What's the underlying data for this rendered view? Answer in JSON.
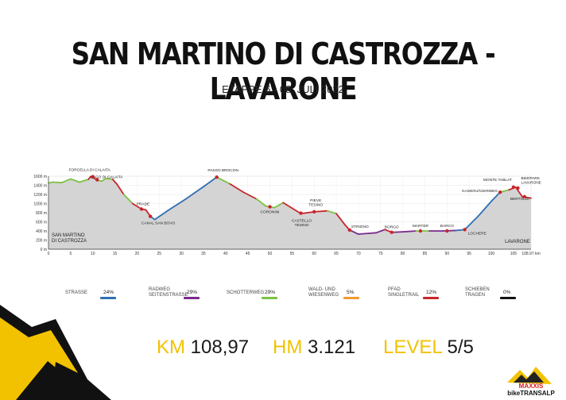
{
  "header": {
    "title": "SAN MARTINO DI CASTROZZA - LAVARONE",
    "subtitle": "ETAPPE 6 - 08. JULI 2022"
  },
  "chart_data": {
    "type": "area",
    "xlabel": "km",
    "ylabel": "m",
    "xlim": [
      0,
      108.97
    ],
    "ylim": [
      0,
      1600
    ],
    "x_ticks": [
      0,
      5,
      10,
      15,
      20,
      25,
      30,
      35,
      40,
      45,
      50,
      55,
      60,
      65,
      70,
      75,
      80,
      85,
      90,
      95,
      100,
      105,
      108.97
    ],
    "x_tick_labels": [
      "0",
      "5",
      "10",
      "15",
      "20",
      "25",
      "30",
      "35",
      "40",
      "45",
      "50",
      "55",
      "60",
      "65",
      "70",
      "75",
      "80",
      "85",
      "90",
      "95",
      "100",
      "105",
      "108.97 km"
    ],
    "y_ticks": [
      0,
      200,
      400,
      600,
      800,
      1000,
      1200,
      1400,
      1600
    ],
    "y_tick_labels": [
      "0 m",
      "200 m",
      "400 m",
      "600 m",
      "800 m",
      "1000 m",
      "1200 m",
      "1400 m",
      "1600 m"
    ],
    "grid": true,
    "profile": [
      {
        "x": 0,
        "y": 1450,
        "s": "schotter"
      },
      {
        "x": 1,
        "y": 1470,
        "s": "schotter"
      },
      {
        "x": 3,
        "y": 1460,
        "s": "schotter"
      },
      {
        "x": 5,
        "y": 1540,
        "s": "schotter"
      },
      {
        "x": 7,
        "y": 1470,
        "s": "schotter"
      },
      {
        "x": 9,
        "y": 1530,
        "s": "schotter"
      },
      {
        "x": 9.5,
        "y": 1590,
        "s": "trail"
      },
      {
        "x": 11,
        "y": 1520,
        "s": "trail"
      },
      {
        "x": 12,
        "y": 1490,
        "s": "schotter"
      },
      {
        "x": 13,
        "y": 1550,
        "s": "schotter"
      },
      {
        "x": 14.5,
        "y": 1530,
        "s": "schotter"
      },
      {
        "x": 15.5,
        "y": 1420,
        "s": "trail"
      },
      {
        "x": 17,
        "y": 1200,
        "s": "trail"
      },
      {
        "x": 19,
        "y": 1000,
        "s": "schotter"
      },
      {
        "x": 21,
        "y": 880,
        "s": "trail"
      },
      {
        "x": 22,
        "y": 860,
        "s": "trail"
      },
      {
        "x": 23,
        "y": 720,
        "s": "trail"
      },
      {
        "x": 24,
        "y": 650,
        "s": "strasse"
      },
      {
        "x": 27,
        "y": 850,
        "s": "strasse"
      },
      {
        "x": 31,
        "y": 1100,
        "s": "strasse"
      },
      {
        "x": 35,
        "y": 1370,
        "s": "strasse"
      },
      {
        "x": 38,
        "y": 1580,
        "s": "strasse"
      },
      {
        "x": 41,
        "y": 1430,
        "s": "schotter"
      },
      {
        "x": 44,
        "y": 1250,
        "s": "trail"
      },
      {
        "x": 47,
        "y": 1100,
        "s": "trail"
      },
      {
        "x": 49,
        "y": 950,
        "s": "schotter"
      },
      {
        "x": 51,
        "y": 910,
        "s": "schotter"
      },
      {
        "x": 53,
        "y": 1020,
        "s": "schotter"
      },
      {
        "x": 55,
        "y": 900,
        "s": "trail"
      },
      {
        "x": 57,
        "y": 780,
        "s": "trail"
      },
      {
        "x": 60,
        "y": 820,
        "s": "trail"
      },
      {
        "x": 63,
        "y": 840,
        "s": "trail"
      },
      {
        "x": 65,
        "y": 780,
        "s": "schotter"
      },
      {
        "x": 67,
        "y": 530,
        "s": "trail"
      },
      {
        "x": 68,
        "y": 420,
        "s": "trail"
      },
      {
        "x": 70,
        "y": 330,
        "s": "radweg"
      },
      {
        "x": 74,
        "y": 360,
        "s": "radweg"
      },
      {
        "x": 76,
        "y": 430,
        "s": "radweg"
      },
      {
        "x": 77.5,
        "y": 370,
        "s": "trail"
      },
      {
        "x": 80,
        "y": 380,
        "s": "radweg"
      },
      {
        "x": 83,
        "y": 400,
        "s": "radweg"
      },
      {
        "x": 86,
        "y": 400,
        "s": "schotter"
      },
      {
        "x": 89,
        "y": 400,
        "s": "radweg"
      },
      {
        "x": 92,
        "y": 410,
        "s": "radweg"
      },
      {
        "x": 94,
        "y": 430,
        "s": "strasse"
      },
      {
        "x": 97,
        "y": 720,
        "s": "strasse"
      },
      {
        "x": 100,
        "y": 1050,
        "s": "strasse"
      },
      {
        "x": 102,
        "y": 1250,
        "s": "strasse"
      },
      {
        "x": 104,
        "y": 1300,
        "s": "schotter"
      },
      {
        "x": 105.5,
        "y": 1360,
        "s": "trail"
      },
      {
        "x": 107,
        "y": 1150,
        "s": "trail"
      },
      {
        "x": 108.97,
        "y": 1120,
        "s": "trail"
      }
    ],
    "waypoints": [
      {
        "x": 0,
        "y": 1450,
        "name": "SAN MARTINO DI CASTROZZA"
      },
      {
        "x": 10,
        "y": 1590,
        "name": "FORCELLA DI CALAITA"
      },
      {
        "x": 11,
        "y": 1520,
        "name": "LAGO DI CALAITA"
      },
      {
        "x": 21,
        "y": 880,
        "name": "PRADE"
      },
      {
        "x": 23,
        "y": 720,
        "name": "CANAL SAN BOVO"
      },
      {
        "x": 38,
        "y": 1580,
        "name": "PASSO BROCON"
      },
      {
        "x": 50,
        "y": 930,
        "name": "CORONINI"
      },
      {
        "x": 57,
        "y": 790,
        "name": "CASTELLO TESINO"
      },
      {
        "x": 60,
        "y": 820,
        "name": "PIEVE TESINO"
      },
      {
        "x": 68,
        "y": 420,
        "name": "STRIGNO"
      },
      {
        "x": 77.5,
        "y": 370,
        "name": "BORGO"
      },
      {
        "x": 84,
        "y": 400,
        "name": "MARTER"
      },
      {
        "x": 90,
        "y": 400,
        "name": "BARCO"
      },
      {
        "x": 94,
        "y": 430,
        "name": "LOCHERE"
      },
      {
        "x": 102,
        "y": 1250,
        "name": "KAISERJÄGERWEG"
      },
      {
        "x": 105,
        "y": 1360,
        "name": "MONTE TABLAT"
      },
      {
        "x": 106,
        "y": 1340,
        "name": "BIKEPARK LAVARONE"
      },
      {
        "x": 107.5,
        "y": 1150,
        "name": "BERTOLDI"
      },
      {
        "x": 108.97,
        "y": 1120,
        "name": "LAVARONE"
      }
    ]
  },
  "legend": [
    {
      "key": "strasse",
      "label": "STRASSE",
      "pct": "24%",
      "color": "#2e6fb3"
    },
    {
      "key": "radweg",
      "label": "RADWEG SEITENSTRASSE",
      "pct": "29%",
      "color": "#7a2a8c"
    },
    {
      "key": "schotter",
      "label": "SCHOTTERWEG",
      "pct": "29%",
      "color": "#7cc242"
    },
    {
      "key": "wald",
      "label": "WALD- UND WIESENWEG",
      "pct": "5%",
      "color": "#f29a2e"
    },
    {
      "key": "trail",
      "label": "PFAD SINGLETRAIL",
      "pct": "12%",
      "color": "#c8262b"
    },
    {
      "key": "schieben",
      "label": "SCHIEBEN TRAGEN",
      "pct": "0%",
      "color": "#111111"
    }
  ],
  "stats": {
    "km_label": "KM",
    "km_value": "108,97",
    "hm_label": "HM",
    "hm_value": "3.121",
    "level_label": "LEVEL",
    "level_value": "5/5"
  },
  "logo": {
    "line1": "MAXXIS",
    "line2": "bikeTRANSALP"
  },
  "colors": {
    "accent": "#f2c200",
    "area": "#d4d4d4",
    "dark": "#1a1a1a"
  }
}
